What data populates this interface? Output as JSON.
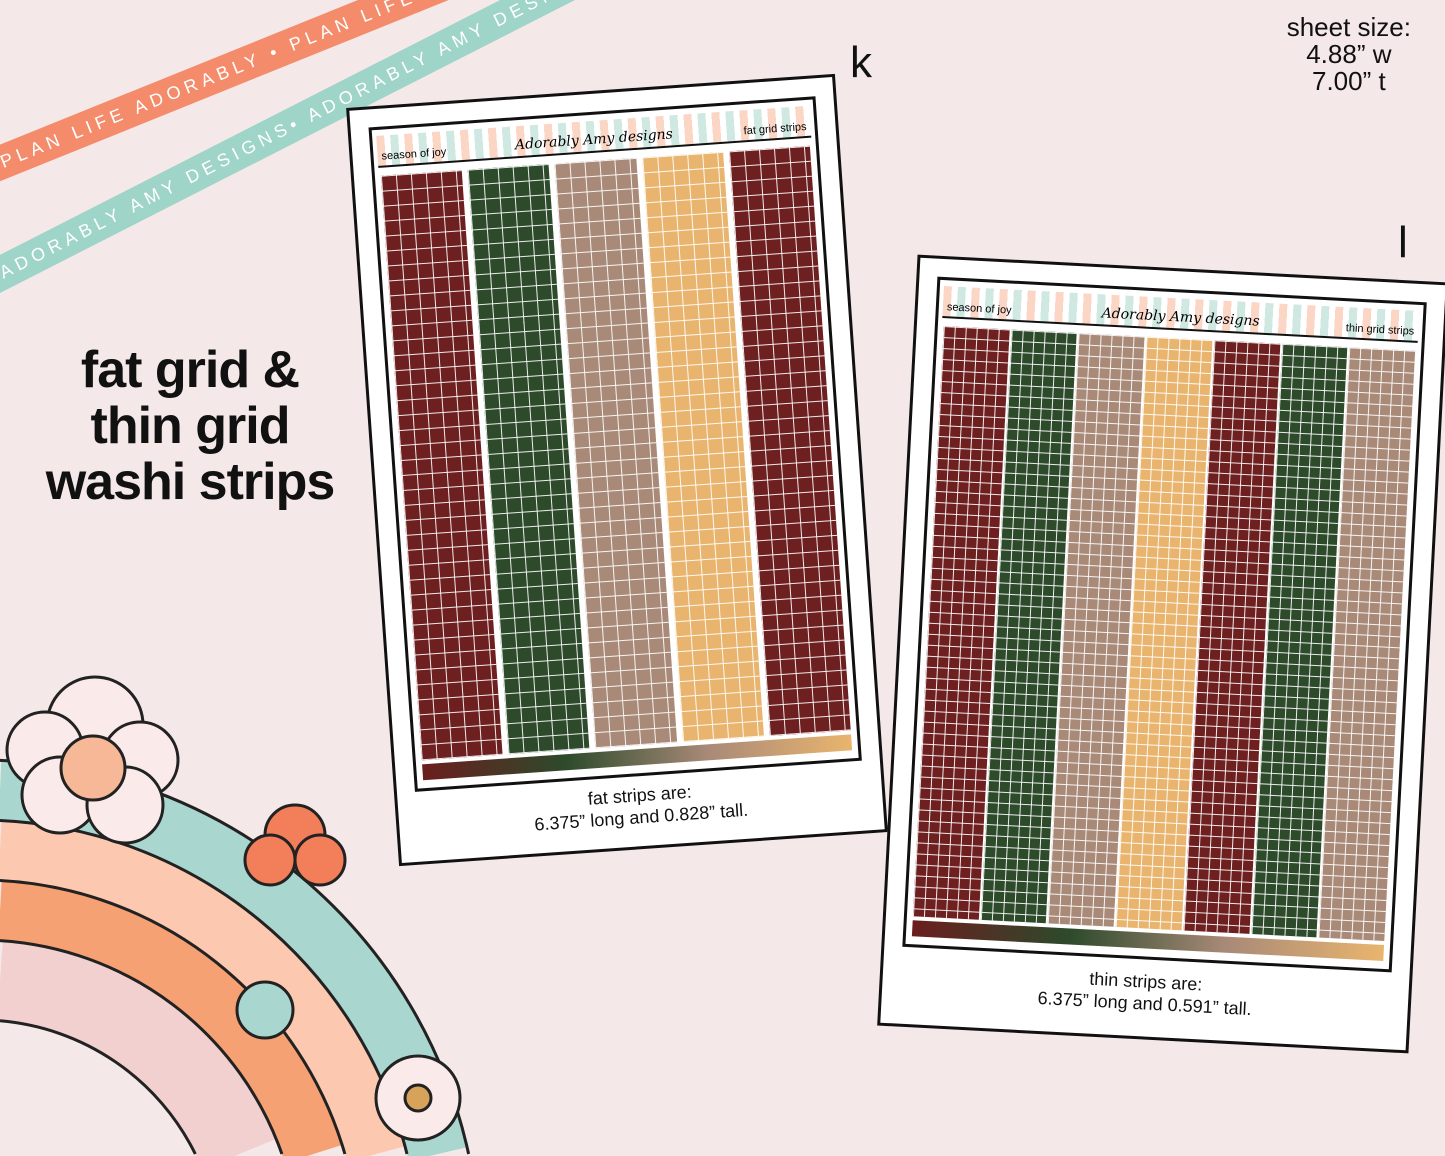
{
  "ribbons": {
    "orange": "PLAN LIFE ADORABLY • PLAN LIFE ADORABLY • PLAN LIFE ADORABLY",
    "teal": "ADORABLY AMY DESIGNS• ADORABLY AMY DESIGNS• ADORABLY AMY DESIGNS"
  },
  "title": {
    "line1": "fat grid &",
    "line2": "thin grid",
    "line3": "washi strips"
  },
  "sheet_size": {
    "label": "sheet size:",
    "width": "4.88” w",
    "height": "7.00” t"
  },
  "sheet_k": {
    "letter": "k",
    "left_label": "season of joy",
    "logo": "Adorably Amy designs",
    "right_label": "fat grid strips",
    "caption1": "fat strips are:",
    "caption2": "6.375” long and 0.828” tall.",
    "strip_colors": [
      "#6e1f1f",
      "#2d4a2b",
      "#a98a78",
      "#e9b56e",
      "#6e1f1f"
    ]
  },
  "sheet_l": {
    "letter": "l",
    "left_label": "season of joy",
    "logo": "Adorably Amy designs",
    "right_label": "thin grid strips",
    "caption1": "thin strips are:",
    "caption2": "6.375” long and 0.591” tall.",
    "strip_colors": [
      "#6e1f1f",
      "#2d4a2b",
      "#a98a78",
      "#e9b56e",
      "#6e1f1f",
      "#2d4a2b",
      "#a98a78"
    ]
  }
}
